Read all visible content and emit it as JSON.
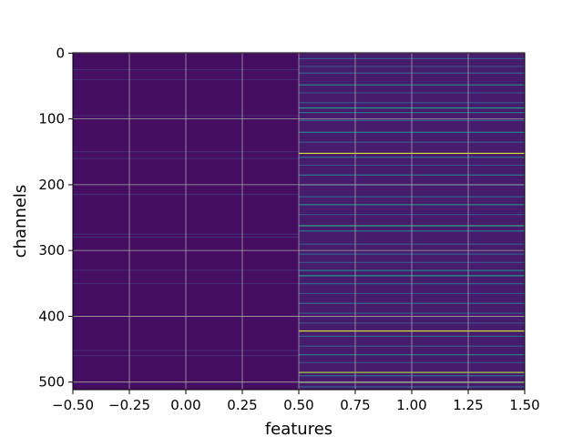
{
  "chart_data": {
    "type": "heatmap",
    "title": "",
    "xlabel": "features",
    "ylabel": "channels",
    "xlim": [
      -0.5,
      1.5
    ],
    "ylim": [
      511.5,
      -0.5
    ],
    "y_axis_inverted": true,
    "x_ticks": [
      -0.5,
      -0.25,
      0.0,
      0.25,
      0.5,
      0.75,
      1.0,
      1.25,
      1.5
    ],
    "x_tick_labels": [
      "−0.50",
      "−0.25",
      "0.00",
      "0.25",
      "0.50",
      "0.75",
      "1.00",
      "1.25",
      "1.50"
    ],
    "y_ticks": [
      0,
      100,
      200,
      300,
      400,
      500
    ],
    "y_tick_labels": [
      "0",
      "100",
      "200",
      "300",
      "400",
      "500"
    ],
    "grid": true,
    "colormap": "viridis",
    "columns": [
      0,
      1
    ],
    "rows": 512,
    "column_0": {
      "base_level": 0.05,
      "faint_channels": [
        25,
        40,
        95,
        150,
        160,
        215,
        275,
        280,
        330,
        350,
        452,
        460
      ]
    },
    "column_1": {
      "base_level": 0.1,
      "highlight_channels": [
        {
          "channel": 8,
          "level": 0.35
        },
        {
          "channel": 20,
          "level": 0.3
        },
        {
          "channel": 30,
          "level": 0.4
        },
        {
          "channel": 48,
          "level": 0.55
        },
        {
          "channel": 60,
          "level": 0.3
        },
        {
          "channel": 75,
          "level": 0.35
        },
        {
          "channel": 83,
          "level": 0.65
        },
        {
          "channel": 90,
          "level": 0.45
        },
        {
          "channel": 102,
          "level": 0.4
        },
        {
          "channel": 120,
          "level": 0.55
        },
        {
          "channel": 135,
          "level": 0.35
        },
        {
          "channel": 152,
          "level": 0.95
        },
        {
          "channel": 158,
          "level": 0.45
        },
        {
          "channel": 170,
          "level": 0.3
        },
        {
          "channel": 185,
          "level": 0.5
        },
        {
          "channel": 200,
          "level": 0.35
        },
        {
          "channel": 218,
          "level": 0.4
        },
        {
          "channel": 230,
          "level": 0.6
        },
        {
          "channel": 245,
          "level": 0.3
        },
        {
          "channel": 262,
          "level": 0.7
        },
        {
          "channel": 270,
          "level": 0.5
        },
        {
          "channel": 290,
          "level": 0.35
        },
        {
          "channel": 305,
          "level": 0.4
        },
        {
          "channel": 318,
          "level": 0.3
        },
        {
          "channel": 330,
          "level": 0.55
        },
        {
          "channel": 338,
          "level": 0.65
        },
        {
          "channel": 350,
          "level": 0.4
        },
        {
          "channel": 365,
          "level": 0.3
        },
        {
          "channel": 380,
          "level": 0.45
        },
        {
          "channel": 395,
          "level": 0.35
        },
        {
          "channel": 410,
          "level": 0.3
        },
        {
          "channel": 422,
          "level": 0.95
        },
        {
          "channel": 430,
          "level": 0.4
        },
        {
          "channel": 445,
          "level": 0.35
        },
        {
          "channel": 458,
          "level": 0.5
        },
        {
          "channel": 470,
          "level": 0.3
        },
        {
          "channel": 485,
          "level": 0.9
        },
        {
          "channel": 490,
          "level": 0.45
        },
        {
          "channel": 500,
          "level": 0.85
        },
        {
          "channel": 507,
          "level": 0.4
        }
      ]
    }
  }
}
